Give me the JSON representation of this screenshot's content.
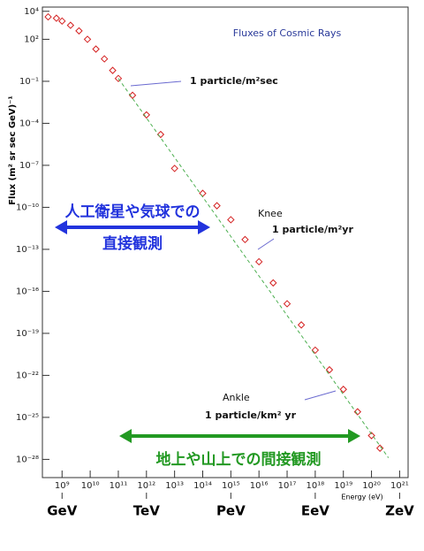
{
  "chart_data": {
    "type": "scatter",
    "title": "Fluxes of Cosmic Rays",
    "x_label": "Energy (eV)",
    "y_label": "Flux (m² sr sec GeV)⁻¹",
    "log_x": true,
    "log_y": true,
    "xlim": [
      200000000.0,
      2e+21
    ],
    "ylim": [
      5e-30,
      20000.0
    ],
    "xticks": [
      {
        "value": 1000000000.0,
        "label": "10⁹"
      },
      {
        "value": 10000000000.0,
        "label": "10¹⁰"
      },
      {
        "value": 100000000000.0,
        "label": "10¹¹"
      },
      {
        "value": 1000000000000.0,
        "label": "10¹²"
      },
      {
        "value": 10000000000000.0,
        "label": "10¹³"
      },
      {
        "value": 100000000000000.0,
        "label": "10¹⁴"
      },
      {
        "value": 1000000000000000.0,
        "label": "10¹⁵"
      },
      {
        "value": 1e+16,
        "label": "10¹⁶"
      },
      {
        "value": 1e+17,
        "label": "10¹⁷"
      },
      {
        "value": 1e+18,
        "label": "10¹⁸"
      },
      {
        "value": 1e+19,
        "label": "10¹⁹"
      },
      {
        "value": 1e+20,
        "label": "10²⁰"
      },
      {
        "value": 1e+21,
        "label": "10²¹"
      }
    ],
    "yticks": [
      {
        "value": 10000.0,
        "label": "10⁴"
      },
      {
        "value": 100.0,
        "label": "10²"
      },
      {
        "value": 0.1,
        "label": "10⁻¹"
      },
      {
        "value": 0.0001,
        "label": "10⁻⁴"
      },
      {
        "value": 1e-07,
        "label": "10⁻⁷"
      },
      {
        "value": 1e-10,
        "label": "10⁻¹⁰"
      },
      {
        "value": 1e-13,
        "label": "10⁻¹³"
      },
      {
        "value": 1e-16,
        "label": "10⁻¹⁶"
      },
      {
        "value": 1e-19,
        "label": "10⁻¹⁹"
      },
      {
        "value": 1e-22,
        "label": "10⁻²²"
      },
      {
        "value": 1e-25,
        "label": "10⁻²⁵"
      },
      {
        "value": 1e-28,
        "label": "10⁻²⁸"
      }
    ],
    "unit_labels": [
      {
        "value": 1000000000.0,
        "label": "GeV"
      },
      {
        "value": 1000000000000.0,
        "label": "TeV"
      },
      {
        "value": 1000000000000000.0,
        "label": "PeV"
      },
      {
        "value": 1e+18,
        "label": "EeV"
      },
      {
        "value": 1e+21,
        "label": "ZeV"
      }
    ],
    "series": [
      {
        "color": "#d42020",
        "x": [
          320000000.0,
          630000000.0,
          1000000000.0,
          2000000000.0,
          4000000000.0,
          8000000000.0,
          16000000000.0,
          32000000000.0,
          63000000000.0,
          100000000000.0,
          320000000000.0,
          1000000000000.0,
          3200000000000.0,
          10000000000000.0,
          100000000000000.0,
          320000000000000.0,
          1000000000000000.0,
          3200000000000000.0,
          1e+16,
          3.2e+16,
          1e+17,
          3.2e+17,
          1e+18,
          3.2e+18,
          1e+19,
          3.2e+19,
          1e+20,
          2e+20
        ],
        "values": [
          4000.0,
          3200.0,
          2000.0,
          1000.0,
          400.0,
          100.0,
          20.0,
          4,
          0.6,
          0.16,
          0.01,
          0.0004,
          1.6e-05,
          6e-08,
          1e-09,
          1.3e-10,
          1.3e-11,
          5e-13,
          1.3e-14,
          4e-16,
          1.3e-17,
          4e-19,
          6.3e-21,
          2.5e-22,
          1e-23,
          2.5e-25,
          5e-27,
          6.3e-28
        ]
      },
      {
        "color": "#4caf50",
        "dashed": true,
        "x": [
          100000000000.0,
          4e+20
        ],
        "values": [
          0.16,
          1.3e-28
        ]
      }
    ],
    "annotations": [
      "1 particle/m²sec",
      "Knee",
      "1 particle/m²yr",
      "Ankle",
      "1 particle/km² yr"
    ],
    "direct_label": [
      "人工衛星や気球での",
      "直接観測"
    ],
    "indirect_label": "地上や山上での間接観測"
  }
}
